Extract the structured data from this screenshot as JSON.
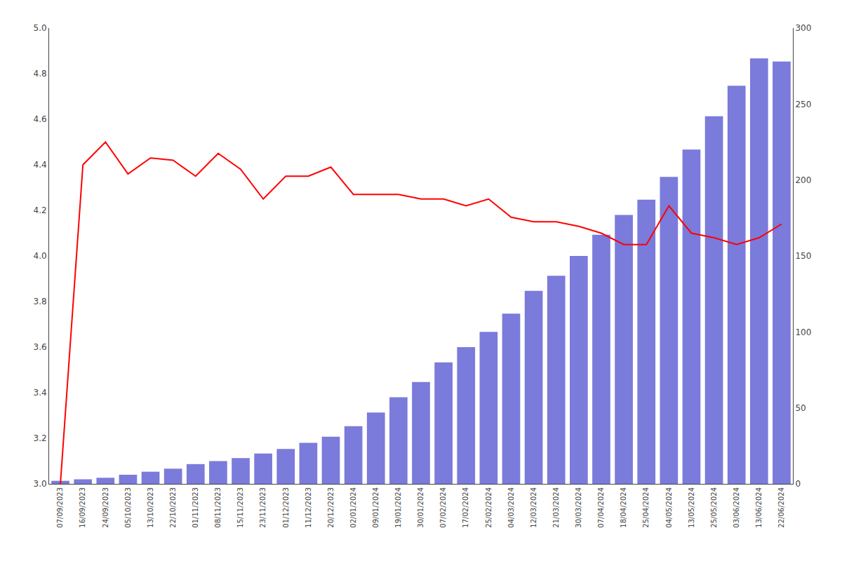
{
  "chart_data": {
    "type": "bar",
    "categories": [
      "07/09/2023",
      "16/09/2023",
      "24/09/2023",
      "05/10/2023",
      "13/10/2023",
      "22/10/2023",
      "01/11/2023",
      "08/11/2023",
      "15/11/2023",
      "23/11/2023",
      "01/12/2023",
      "11/12/2023",
      "20/12/2023",
      "02/01/2024",
      "09/01/2024",
      "19/01/2024",
      "30/01/2024",
      "07/02/2024",
      "17/02/2024",
      "25/02/2024",
      "04/03/2024",
      "12/03/2024",
      "21/03/2024",
      "30/03/2024",
      "07/04/2024",
      "18/04/2024",
      "25/04/2024",
      "04/05/2024",
      "13/05/2024",
      "25/05/2024",
      "03/06/2024",
      "13/06/2024",
      "22/06/2024"
    ],
    "series": [
      {
        "type": "bar",
        "axis": "y2",
        "color": "#7b7bdb",
        "values": [
          2,
          3,
          4,
          6,
          8,
          10,
          13,
          15,
          17,
          20,
          23,
          27,
          31,
          38,
          47,
          57,
          67,
          80,
          90,
          100,
          112,
          127,
          137,
          150,
          164,
          177,
          187,
          202,
          220,
          242,
          262,
          280,
          278
        ]
      },
      {
        "type": "line",
        "color": "#ff0000",
        "values": [
          3.0,
          4.4,
          4.5,
          4.36,
          4.43,
          4.42,
          4.35,
          4.45,
          4.38,
          4.25,
          4.35,
          4.35,
          4.39,
          4.27,
          4.27,
          4.27,
          4.25,
          4.25,
          4.22,
          4.25,
          4.17,
          4.15,
          4.15,
          4.13,
          4.1,
          4.05,
          4.05,
          4.22,
          4.1,
          4.08,
          4.05,
          4.08,
          4.14
        ]
      }
    ],
    "ylim": [
      3.0,
      5.0
    ],
    "yticks": [
      {
        "value": 3.0,
        "label": "3.0"
      },
      3.2,
      3.4,
      3.6,
      3.8,
      {
        "value": 4.0,
        "label": "4.0"
      },
      4.2,
      4.4,
      4.6,
      4.8,
      {
        "value": 5.0,
        "label": "5.0"
      }
    ],
    "y2lim": [
      0,
      300
    ],
    "y2ticks": [
      0,
      50,
      100,
      150,
      200,
      250,
      300
    ],
    "grid": false
  }
}
